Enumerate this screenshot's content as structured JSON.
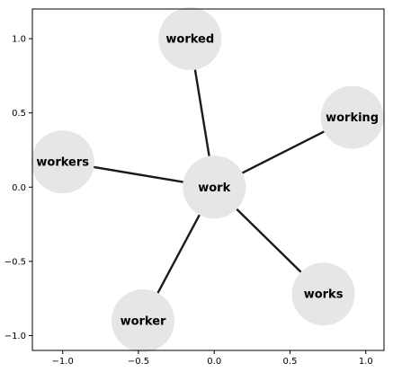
{
  "chart_data": {
    "type": "network",
    "xlim": [
      -1.2,
      1.12
    ],
    "ylim": [
      -1.1,
      1.2
    ],
    "x_ticks": [
      -1.0,
      -0.5,
      0.0,
      0.5,
      1.0
    ],
    "x_tick_labels": [
      "−1.0",
      "−0.5",
      "0.0",
      "0.5",
      "1.0"
    ],
    "y_ticks": [
      1.0,
      0.5,
      0.0,
      -0.5,
      -1.0
    ],
    "y_tick_labels": [
      "1.0",
      "0.5",
      "0.0",
      "−0.5",
      "−1.0"
    ],
    "grid": false,
    "node_color": "#e6e6e6",
    "edge_color": "#1a1a1a",
    "nodes": [
      {
        "id": "work",
        "label": "work",
        "x": 0.0,
        "y": 0.0
      },
      {
        "id": "worked",
        "label": "worked",
        "x": -0.16,
        "y": 1.0
      },
      {
        "id": "working",
        "label": "working",
        "x": 0.91,
        "y": 0.47
      },
      {
        "id": "workers",
        "label": "workers",
        "x": -1.0,
        "y": 0.17
      },
      {
        "id": "works",
        "label": "works",
        "x": 0.72,
        "y": -0.72
      },
      {
        "id": "worker",
        "label": "worker",
        "x": -0.47,
        "y": -0.9
      }
    ],
    "edges": [
      [
        "work",
        "worked"
      ],
      [
        "work",
        "working"
      ],
      [
        "work",
        "workers"
      ],
      [
        "work",
        "works"
      ],
      [
        "work",
        "worker"
      ]
    ]
  }
}
